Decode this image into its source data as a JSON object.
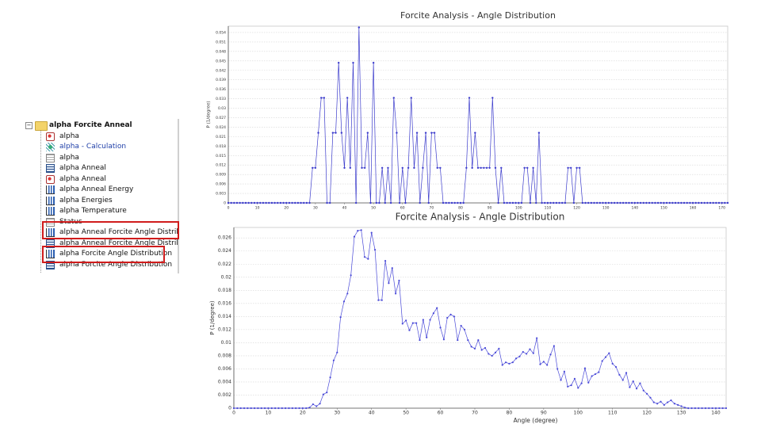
{
  "tree": {
    "root": "alpha Forcite Anneal",
    "items": [
      "alpha",
      "alpha - Calculation",
      "alpha",
      "alpha Anneal",
      "alpha Anneal",
      "alpha Anneal Energy",
      "alpha Energies",
      "alpha Temperature",
      "Status",
      "alpha Anneal Forcite Angle Distribu",
      "alpha Anneal Forcite Angle Distribu",
      "alpha Forcite Angle Distribution",
      "alpha Forcite Angle Distribution"
    ]
  },
  "chart_data": [
    {
      "type": "line",
      "title": "Forcite Analysis - Angle Distribution",
      "y_label": "P (1/degree)",
      "color": "#3c3ccc",
      "grid": true,
      "x": [
        0,
        1,
        2,
        3,
        4,
        5,
        6,
        7,
        8,
        9,
        10,
        11,
        12,
        13,
        14,
        15,
        16,
        17,
        18,
        19,
        20,
        21,
        22,
        23,
        24,
        25,
        26,
        27,
        28,
        29,
        30,
        31,
        32,
        33,
        34,
        35,
        36,
        37,
        38,
        39,
        40,
        41,
        42,
        43,
        44,
        45,
        46,
        47,
        48,
        49,
        50,
        51,
        52,
        53,
        54,
        55,
        56,
        57,
        58,
        59,
        60,
        61,
        62,
        63,
        64,
        65,
        66,
        67,
        68,
        69,
        70,
        71,
        72,
        73,
        74,
        75,
        76,
        77,
        78,
        79,
        80,
        81,
        82,
        83,
        84,
        85,
        86,
        87,
        88,
        89,
        90,
        91,
        92,
        93,
        94,
        95,
        96,
        97,
        98,
        99,
        100,
        101,
        102,
        103,
        104,
        105,
        106,
        107,
        108,
        109,
        110,
        111,
        112,
        113,
        114,
        115,
        116,
        117,
        118,
        119,
        120,
        121,
        122,
        123,
        124,
        125,
        126,
        127,
        128,
        129,
        130,
        131,
        132,
        133,
        134,
        135,
        136,
        137,
        138,
        139,
        140,
        141,
        142,
        143,
        144,
        145,
        146,
        147,
        148,
        149,
        150,
        151,
        152,
        153,
        154,
        155,
        156,
        157,
        158,
        159,
        160,
        161,
        162,
        163,
        164,
        165,
        166,
        167,
        168,
        169,
        170,
        171,
        172
      ],
      "values": [
        0,
        0,
        0,
        0,
        0,
        0,
        0,
        0,
        0,
        0,
        0,
        0,
        0,
        0,
        0,
        0,
        0,
        0,
        0,
        0,
        0,
        0,
        0,
        0,
        0,
        0,
        0,
        0,
        0,
        0.0111,
        0.0111,
        0.0222,
        0.0333,
        0.0333,
        0,
        0,
        0.0222,
        0.0222,
        0.0444,
        0.0222,
        0.0111,
        0.0333,
        0.0111,
        0.0444,
        0,
        0.0556,
        0.0111,
        0.0111,
        0.0222,
        0,
        0.0444,
        0,
        0,
        0.0111,
        0,
        0.0111,
        0,
        0.0333,
        0.0222,
        0,
        0.0111,
        0,
        0.0111,
        0.0333,
        0.0111,
        0.0222,
        0,
        0.0111,
        0.0222,
        0,
        0.0222,
        0.0222,
        0.0111,
        0.0111,
        0,
        0,
        0,
        0,
        0,
        0,
        0,
        0,
        0.0111,
        0.0333,
        0.0111,
        0.0222,
        0.0111,
        0.0111,
        0.0111,
        0.0111,
        0.0111,
        0.0333,
        0.0111,
        0,
        0.0111,
        0,
        0,
        0,
        0,
        0,
        0,
        0,
        0.0111,
        0.0111,
        0,
        0.0111,
        0,
        0.0222,
        0,
        0,
        0,
        0,
        0,
        0,
        0,
        0,
        0,
        0.0111,
        0.0111,
        0,
        0.0111,
        0.0111,
        0,
        0,
        0,
        0,
        0,
        0,
        0,
        0,
        0,
        0,
        0,
        0,
        0,
        0,
        0,
        0,
        0,
        0,
        0,
        0,
        0,
        0,
        0,
        0,
        0,
        0,
        0,
        0,
        0,
        0,
        0,
        0,
        0,
        0,
        0,
        0,
        0,
        0,
        0,
        0,
        0,
        0,
        0,
        0,
        0,
        0,
        0,
        0,
        0,
        0,
        0
      ],
      "xlim": [
        0,
        172
      ],
      "xticks": [
        0,
        10,
        20,
        30,
        40,
        50,
        60,
        70,
        80,
        90,
        100,
        110,
        120,
        130,
        140,
        150,
        160,
        170
      ],
      "ylim": [
        0,
        0.056
      ],
      "yticks": [
        0,
        0.003,
        0.006,
        0.009,
        0.012,
        0.015,
        0.018,
        0.021,
        0.024,
        0.027,
        0.03,
        0.033,
        0.036,
        0.039,
        0.042,
        0.045,
        0.048,
        0.051,
        0.054
      ]
    },
    {
      "type": "line",
      "title": "Forcite Analysis - Angle Distribution",
      "x_label": "Angle (degree)",
      "y_label": "P (1/degree)",
      "color": "#4a4ad8",
      "grid": true,
      "x": [
        0,
        1,
        2,
        3,
        4,
        5,
        6,
        7,
        8,
        9,
        10,
        11,
        12,
        13,
        14,
        15,
        16,
        17,
        18,
        19,
        20,
        21,
        22,
        23,
        24,
        25,
        26,
        27,
        28,
        29,
        30,
        31,
        32,
        33,
        34,
        35,
        36,
        37,
        38,
        39,
        40,
        41,
        42,
        43,
        44,
        45,
        46,
        47,
        48,
        49,
        50,
        51,
        52,
        53,
        54,
        55,
        56,
        57,
        58,
        59,
        60,
        61,
        62,
        63,
        64,
        65,
        66,
        67,
        68,
        69,
        70,
        71,
        72,
        73,
        74,
        75,
        76,
        77,
        78,
        79,
        80,
        81,
        82,
        83,
        84,
        85,
        86,
        87,
        88,
        89,
        90,
        91,
        92,
        93,
        94,
        95,
        96,
        97,
        98,
        99,
        100,
        101,
        102,
        103,
        104,
        105,
        106,
        107,
        108,
        109,
        110,
        111,
        112,
        113,
        114,
        115,
        116,
        117,
        118,
        119,
        120,
        121,
        122,
        123,
        124,
        125,
        126,
        127,
        128,
        129,
        130,
        131,
        132,
        133,
        134,
        135,
        136,
        137,
        138,
        139,
        140,
        141,
        142,
        143
      ],
      "values": [
        0,
        0,
        0,
        0,
        0,
        0,
        0,
        0,
        0,
        0,
        0,
        0,
        0,
        0,
        0,
        0,
        0,
        0,
        0,
        0,
        0,
        0,
        0.0001,
        0.0006,
        0.0003,
        0.0007,
        0.0021,
        0.0024,
        0.0047,
        0.0073,
        0.0085,
        0.0139,
        0.0163,
        0.0175,
        0.0203,
        0.0262,
        0.0271,
        0.0272,
        0.0231,
        0.0228,
        0.0268,
        0.0242,
        0.0165,
        0.0165,
        0.0225,
        0.0191,
        0.0214,
        0.0175,
        0.0195,
        0.0129,
        0.0134,
        0.0119,
        0.013,
        0.013,
        0.0104,
        0.0135,
        0.0108,
        0.0135,
        0.0145,
        0.0153,
        0.0123,
        0.0105,
        0.0138,
        0.0143,
        0.014,
        0.0104,
        0.0126,
        0.012,
        0.0104,
        0.0094,
        0.0091,
        0.0104,
        0.0089,
        0.0092,
        0.0083,
        0.008,
        0.0085,
        0.0091,
        0.0066,
        0.007,
        0.0068,
        0.007,
        0.0076,
        0.0079,
        0.0086,
        0.0083,
        0.009,
        0.0084,
        0.0107,
        0.0067,
        0.0071,
        0.0066,
        0.0082,
        0.0095,
        0.006,
        0.0043,
        0.0056,
        0.0033,
        0.0035,
        0.0045,
        0.0031,
        0.0038,
        0.0061,
        0.0039,
        0.0049,
        0.0052,
        0.0055,
        0.0072,
        0.0078,
        0.0084,
        0.0068,
        0.0063,
        0.0051,
        0.0043,
        0.0054,
        0.0032,
        0.0041,
        0.003,
        0.0038,
        0.0027,
        0.0022,
        0.0016,
        0.0009,
        0.0007,
        0.001,
        0.0005,
        0.0009,
        0.0012,
        0.0007,
        0.0005,
        0.0003,
        0.0001,
        0,
        0,
        0,
        0,
        0,
        0,
        0,
        0,
        0,
        0,
        0,
        0
      ],
      "xlim": [
        0,
        143
      ],
      "xticks": [
        0,
        10,
        20,
        30,
        40,
        50,
        60,
        70,
        80,
        90,
        100,
        110,
        120,
        130,
        140
      ],
      "ylim": [
        0,
        0.0276
      ],
      "yticks": [
        0,
        0.002,
        0.004,
        0.006,
        0.008,
        0.01,
        0.012,
        0.014,
        0.016,
        0.018,
        0.02,
        0.022,
        0.024,
        0.026
      ]
    }
  ]
}
